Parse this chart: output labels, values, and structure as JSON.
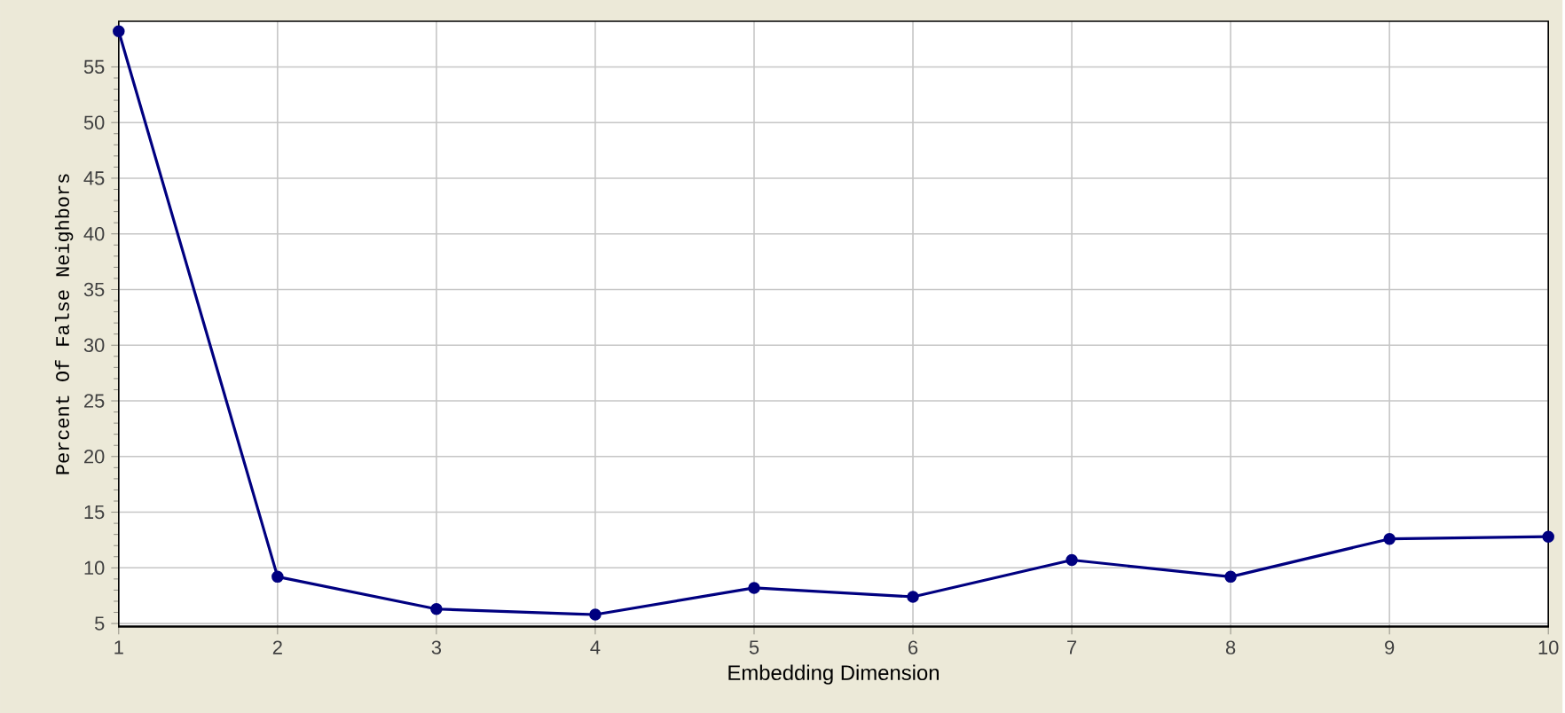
{
  "chart_data": {
    "type": "line",
    "xlabel": "Embedding Dimension",
    "ylabel": "Percent Of False Neighbors",
    "x": [
      1,
      2,
      3,
      4,
      5,
      6,
      7,
      8,
      9,
      10
    ],
    "series": [
      {
        "color": "#000080",
        "values": [
          58.2,
          9.2,
          6.3,
          5.8,
          8.2,
          7.4,
          10.7,
          9.2,
          12.6,
          12.8
        ]
      }
    ],
    "xlim": [
      1,
      10
    ],
    "ylim": [
      4.7,
      59.1
    ],
    "xticks": [
      1,
      2,
      3,
      4,
      5,
      6,
      7,
      8,
      9,
      10
    ],
    "yticks": [
      5,
      10,
      15,
      20,
      25,
      30,
      35,
      40,
      45,
      50,
      55
    ],
    "grid": true,
    "marker": "circle",
    "line_style": "solid"
  }
}
